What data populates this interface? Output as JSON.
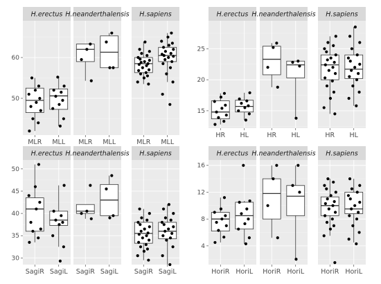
{
  "chart_data": [
    {
      "type": "boxplot",
      "ylim": [
        41,
        69
      ],
      "yticks": [
        50,
        60
      ],
      "facets": [
        {
          "title": "H.erectus",
          "categories": [
            "MLR",
            "MLL"
          ],
          "boxes": [
            {
              "q1": 46.5,
              "median": 49.5,
              "q3": 52.5,
              "lo": 42.0,
              "hi": 55.0,
              "points": [
                42.0,
                44.0,
                45.0,
                47.0,
                48.0,
                49.0,
                50.0,
                51.0,
                52.0,
                53.0,
                55.0
              ]
            },
            {
              "q1": 47.3,
              "median": 50.6,
              "q3": 52.3,
              "lo": 43.2,
              "hi": 55.2,
              "points": [
                43.2,
                45.0,
                47.5,
                48.5,
                49.5,
                50.5,
                51.5,
                52.0,
                53.0,
                55.2
              ]
            }
          ]
        },
        {
          "title": "H.neanderthalensis",
          "categories": [
            "MLR",
            "MLL"
          ],
          "boxes": [
            {
              "q1": 59.0,
              "median": 62.0,
              "q3": 63.3,
              "lo": 54.3,
              "hi": 63.3,
              "points": [
                54.3,
                59.5,
                62.0,
                63.3
              ]
            },
            {
              "q1": 57.5,
              "median": 61.3,
              "q3": 65.3,
              "lo": 57.5,
              "hi": 66.0,
              "points": [
                57.5,
                57.5,
                63.8,
                66.0
              ]
            }
          ]
        },
        {
          "title": "H.sapiens",
          "categories": [
            "MLR",
            "MLL"
          ],
          "boxes": [
            {
              "q1": 56.3,
              "median": 58.5,
              "q3": 60.0,
              "lo": 53.5,
              "hi": 63.8,
              "points": [
                53.5,
                54.0,
                55.0,
                55.5,
                56.0,
                56.3,
                56.8,
                57.0,
                57.5,
                58.0,
                58.3,
                58.5,
                58.8,
                59.0,
                59.3,
                59.6,
                60.0,
                60.5,
                61.0,
                61.5,
                62.0,
                63.8
              ]
            },
            {
              "q1": 59.0,
              "median": 60.5,
              "q3": 62.5,
              "lo": 54.0,
              "hi": 66.0,
              "points": [
                48.5,
                51.0,
                54.0,
                56.0,
                57.5,
                58.5,
                59.0,
                59.5,
                60.0,
                60.3,
                60.5,
                60.8,
                61.0,
                61.5,
                62.0,
                62.5,
                63.0,
                63.5,
                64.0,
                65.0,
                66.0
              ]
            }
          ]
        }
      ]
    },
    {
      "type": "boxplot",
      "ylim": [
        12.2,
        29.5
      ],
      "yticks": [
        15,
        20,
        25
      ],
      "facets": [
        {
          "title": "H.erectus",
          "categories": [
            "HR",
            "HL"
          ],
          "boxes": [
            {
              "q1": 13.7,
              "median": 14.8,
              "q3": 16.6,
              "lo": 12.8,
              "hi": 17.8,
              "points": [
                12.8,
                13.3,
                13.9,
                14.3,
                14.8,
                15.4,
                15.9,
                16.5,
                17.2,
                17.8
              ]
            },
            {
              "q1": 14.8,
              "median": 15.7,
              "q3": 16.7,
              "lo": 13.5,
              "hi": 17.9,
              "points": [
                13.5,
                14.5,
                15.0,
                15.5,
                15.8,
                16.2,
                16.6,
                16.9,
                17.9
              ]
            }
          ]
        },
        {
          "title": "H.neanderthalensis",
          "categories": [
            "HR",
            "HL"
          ],
          "boxes": [
            {
              "q1": 20.8,
              "median": 23.3,
              "q3": 25.4,
              "lo": 18.8,
              "hi": 25.9,
              "points": [
                18.8,
                22.0,
                25.2,
                25.9
              ]
            },
            {
              "q1": 20.3,
              "median": 22.4,
              "q3": 23.0,
              "lo": 13.8,
              "hi": 23.0,
              "points": [
                13.8,
                22.2,
                22.8,
                23.0
              ]
            }
          ]
        },
        {
          "title": "H.sapiens",
          "categories": [
            "HR",
            "HL"
          ],
          "boxes": [
            {
              "q1": 20.0,
              "median": 22.4,
              "q3": 24.0,
              "lo": 14.5,
              "hi": 27.0,
              "points": [
                14.5,
                15.5,
                17.0,
                18.0,
                19.0,
                19.8,
                20.3,
                21.0,
                21.5,
                22.0,
                22.4,
                22.8,
                23.2,
                23.5,
                24.0,
                24.5,
                25.0,
                25.5,
                26.0,
                27.0
              ]
            },
            {
              "q1": 20.2,
              "median": 21.7,
              "q3": 24.0,
              "lo": 15.8,
              "hi": 28.5,
              "points": [
                15.8,
                17.0,
                18.0,
                19.0,
                20.0,
                20.5,
                21.0,
                21.5,
                22.0,
                22.5,
                23.0,
                23.5,
                24.0,
                25.0,
                26.0,
                27.0,
                28.5
              ]
            }
          ]
        }
      ]
    },
    {
      "type": "boxplot",
      "ylim": [
        28.5,
        52.0
      ],
      "yticks": [
        30,
        35,
        40,
        45,
        50
      ],
      "facets": [
        {
          "title": "H.erectus",
          "categories": [
            "SagiR",
            "SagiL"
          ],
          "boxes": [
            {
              "q1": 36.0,
              "median": 41.0,
              "q3": 43.5,
              "lo": 33.5,
              "hi": 51.0,
              "points": [
                33.5,
                34.5,
                36.0,
                36.5,
                38.0,
                41.0,
                42.5,
                44.0,
                46.0,
                51.0
              ]
            },
            {
              "q1": 37.3,
              "median": 38.5,
              "q3": 40.5,
              "lo": 32.5,
              "hi": 46.3,
              "points": [
                29.3,
                32.5,
                35.0,
                37.5,
                38.0,
                38.5,
                39.5,
                40.5,
                46.3
              ]
            }
          ]
        },
        {
          "title": "H.neanderthalensis",
          "categories": [
            "SagiR",
            "SagiL"
          ],
          "boxes": [
            {
              "q1": 40.0,
              "median": 40.5,
              "q3": 42.0,
              "lo": 38.8,
              "hi": 42.0,
              "points": [
                38.8,
                40.0,
                40.5,
                46.3
              ]
            },
            {
              "q1": 39.5,
              "median": 43.0,
              "q3": 46.5,
              "lo": 39.0,
              "hi": 48.5,
              "points": [
                39.0,
                39.5,
                45.5,
                48.5
              ]
            }
          ]
        },
        {
          "title": "H.sapiens",
          "categories": [
            "SagiR",
            "SagiL"
          ],
          "boxes": [
            {
              "q1": 33.3,
              "median": 35.5,
              "q3": 38.0,
              "lo": 29.5,
              "hi": 41.0,
              "points": [
                29.5,
                30.5,
                31.5,
                32.0,
                32.5,
                33.0,
                33.5,
                34.0,
                34.5,
                35.0,
                35.3,
                35.6,
                36.0,
                36.5,
                37.0,
                37.5,
                38.0,
                38.5,
                39.0,
                40.0,
                41.0
              ]
            },
            {
              "q1": 34.3,
              "median": 36.0,
              "q3": 38.0,
              "lo": 28.5,
              "hi": 42.0,
              "points": [
                28.5,
                30.5,
                32.5,
                34.0,
                34.5,
                35.0,
                35.5,
                36.0,
                36.5,
                37.0,
                37.5,
                38.0,
                38.5,
                39.0,
                40.0,
                41.0,
                42.0
              ]
            }
          ]
        }
      ]
    },
    {
      "type": "boxplot",
      "ylim": [
        1.2,
        16.8
      ],
      "yticks": [
        4,
        8,
        12,
        16
      ],
      "facets": [
        {
          "title": "H.erectus",
          "categories": [
            "HoriR",
            "HoriL"
          ],
          "boxes": [
            {
              "q1": 6.2,
              "median": 8.0,
              "q3": 9.0,
              "lo": 4.5,
              "hi": 11.2,
              "points": [
                4.5,
                5.3,
                6.3,
                7.0,
                7.5,
                8.0,
                8.5,
                9.0,
                9.5,
                11.2
              ]
            },
            {
              "q1": 6.5,
              "median": 8.5,
              "q3": 10.5,
              "lo": 4.3,
              "hi": 10.7,
              "points": [
                4.3,
                5.2,
                6.5,
                7.3,
                8.0,
                8.8,
                9.5,
                10.5,
                10.7,
                16.0
              ]
            }
          ]
        },
        {
          "title": "H.neanderthalensis",
          "categories": [
            "HoriR",
            "HoriL"
          ],
          "boxes": [
            {
              "q1": 8.0,
              "median": 11.8,
              "q3": 14.0,
              "lo": 5.2,
              "hi": 16.0,
              "points": [
                5.2,
                10.0,
                14.0,
                16.0
              ]
            },
            {
              "q1": 8.5,
              "median": 11.4,
              "q3": 13.0,
              "lo": 2.0,
              "hi": 16.0,
              "points": [
                2.0,
                12.0,
                13.0,
                16.0
              ]
            }
          ]
        },
        {
          "title": "H.sapiens",
          "categories": [
            "HoriR",
            "HoriL"
          ],
          "boxes": [
            {
              "q1": 8.5,
              "median": 10.0,
              "q3": 11.3,
              "lo": 5.5,
              "hi": 14.0,
              "points": [
                1.5,
                5.5,
                6.5,
                7.0,
                7.5,
                8.0,
                8.5,
                9.0,
                9.5,
                10.0,
                10.3,
                10.6,
                11.0,
                11.5,
                12.0,
                12.5,
                13.0,
                13.5,
                14.0
              ]
            },
            {
              "q1": 8.8,
              "median": 9.5,
              "q3": 12.0,
              "lo": 4.5,
              "hi": 14.0,
              "points": [
                4.3,
                5.0,
                6.0,
                7.0,
                8.0,
                8.5,
                9.0,
                9.5,
                10.0,
                10.5,
                11.0,
                11.5,
                12.0,
                12.5,
                13.0,
                14.0
              ]
            }
          ]
        }
      ]
    }
  ]
}
